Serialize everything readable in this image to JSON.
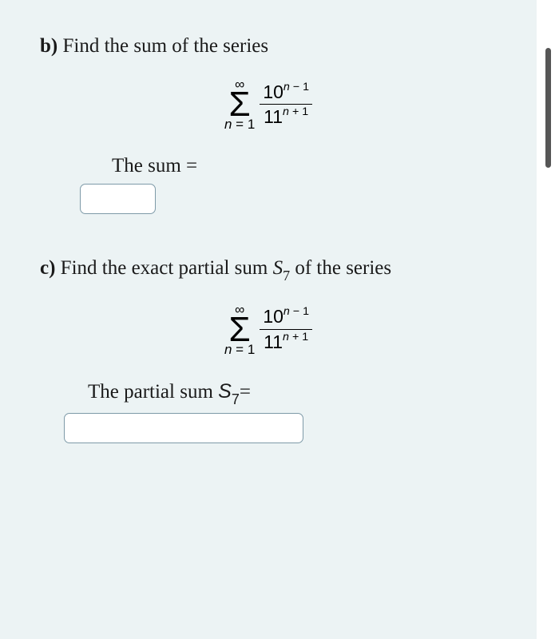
{
  "background_color": "#ecf3f4",
  "text_color": "#1a1a1a",
  "input_border_color": "#7e9aa8",
  "scrollbar_thumb_color": "#565656",
  "font_family_body": "Georgia, serif",
  "font_family_math": "Arial, sans-serif",
  "body_fontsize": 25,
  "problems": [
    {
      "label": "b)",
      "prompt_text": "Find the sum of the series",
      "formula": {
        "type": "summation_fraction",
        "upper": "∞",
        "lower_var": "n",
        "lower_eq": "=",
        "lower_val": "1",
        "num_base": "10",
        "num_exp_var": "n",
        "num_exp_op": "− 1",
        "den_base": "11",
        "den_exp_var": "n",
        "den_exp_op": "+ 1"
      },
      "answer_label_prefix": "The sum",
      "answer_label_eq": "=",
      "input_width": "short",
      "input_value": ""
    },
    {
      "label": "c)",
      "prompt_text_1": "Find the exact partial sum",
      "prompt_math_base": "S",
      "prompt_math_sub": "7",
      "prompt_text_2": "of the series",
      "formula": {
        "type": "summation_fraction",
        "upper": "∞",
        "lower_var": "n",
        "lower_eq": "=",
        "lower_val": "1",
        "num_base": "10",
        "num_exp_var": "n",
        "num_exp_op": "− 1",
        "den_base": "11",
        "den_exp_var": "n",
        "den_exp_op": "+ 1"
      },
      "answer_label_prefix": "The partial sum ",
      "answer_label_math_base": "S",
      "answer_label_math_sub": "7",
      "answer_label_eq": "=",
      "input_width": "long",
      "input_value": ""
    }
  ]
}
